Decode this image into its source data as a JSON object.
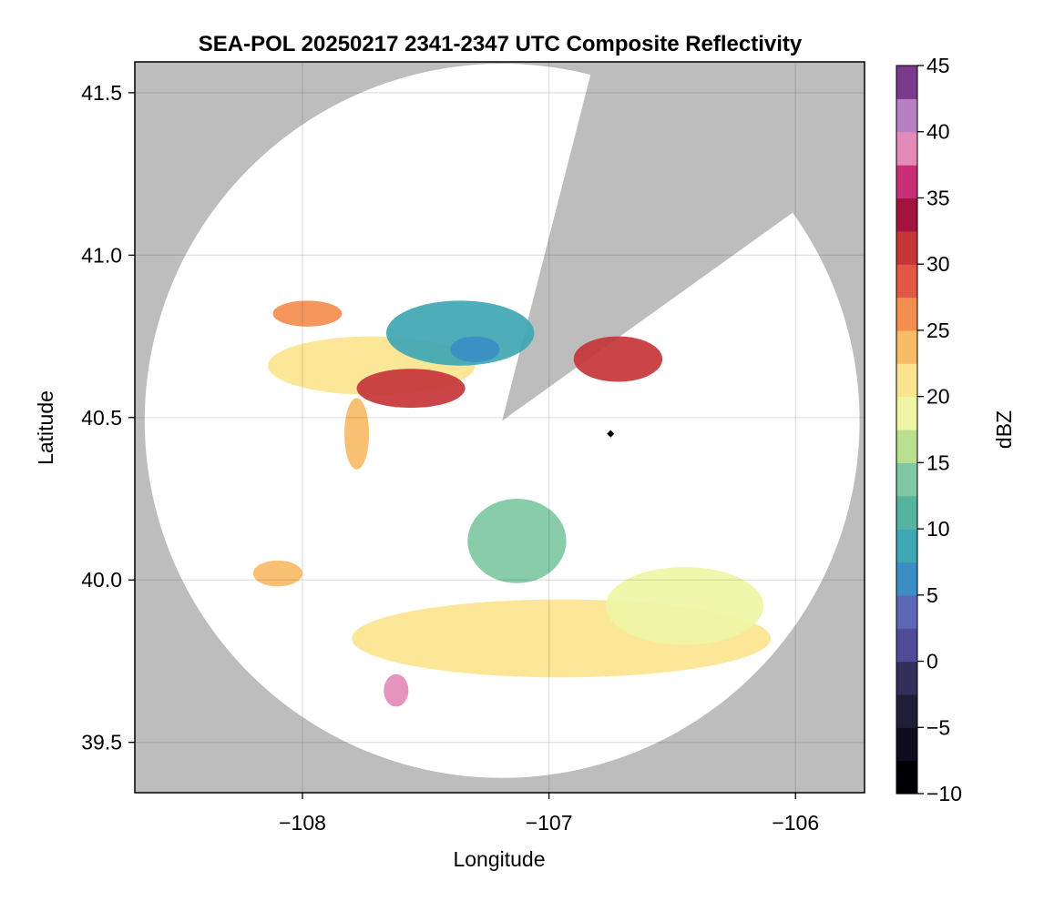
{
  "chart_data": {
    "type": "heatmap",
    "title": "SEA-POL 20250217 2341-2347 UTC Composite Reflectivity",
    "xlabel": "Longitude",
    "ylabel": "Latitude",
    "xlim": [
      -108.68,
      -105.72
    ],
    "ylim": [
      39.345,
      41.595
    ],
    "xticks": [
      -108,
      -107,
      -106
    ],
    "xtick_labels": [
      "−108",
      "−107",
      "−106"
    ],
    "yticks": [
      39.5,
      40.0,
      40.5,
      41.0,
      41.5
    ],
    "ytick_labels": [
      "39.5",
      "40.0",
      "40.5",
      "41.0",
      "41.5"
    ],
    "grid": true,
    "background_color": "#bdbdbd",
    "radar": {
      "center_lon": -107.19,
      "center_lat": 40.49,
      "coverage_radius_deg": 1.45,
      "blocked_sector": {
        "left_edge_tip": [
          -106.84,
          41.53
        ],
        "right_edge_tip": [
          -106.05,
          41.11
        ]
      },
      "site_marker": [
        -106.75,
        40.45
      ]
    },
    "echo_regions": [
      {
        "name": "northern-band-west",
        "lon": -107.72,
        "lat": 40.66,
        "rx": 0.42,
        "ry": 0.09,
        "dbz": 20
      },
      {
        "name": "northern-band-core",
        "lon": -107.56,
        "lat": 40.59,
        "rx": 0.22,
        "ry": 0.06,
        "dbz": 30
      },
      {
        "name": "northern-stratiform",
        "lon": -107.36,
        "lat": 40.76,
        "rx": 0.3,
        "ry": 0.1,
        "dbz": 9
      },
      {
        "name": "northern-blue-patch",
        "lon": -107.3,
        "lat": 40.71,
        "rx": 0.1,
        "ry": 0.04,
        "dbz": 5
      },
      {
        "name": "northwest-streak",
        "lon": -107.98,
        "lat": 40.82,
        "rx": 0.14,
        "ry": 0.04,
        "dbz": 25
      },
      {
        "name": "southward-tail",
        "lon": -107.78,
        "lat": 40.45,
        "rx": 0.05,
        "ry": 0.11,
        "dbz": 24
      },
      {
        "name": "northeast-cell",
        "lon": -106.72,
        "lat": 40.68,
        "rx": 0.18,
        "ry": 0.07,
        "dbz": 30
      },
      {
        "name": "central-cell",
        "lon": -107.13,
        "lat": 40.12,
        "rx": 0.2,
        "ry": 0.13,
        "dbz": 14
      },
      {
        "name": "southern-band",
        "lon": -106.95,
        "lat": 39.82,
        "rx": 0.85,
        "ry": 0.12,
        "dbz": 20
      },
      {
        "name": "southern-band-east",
        "lon": -106.45,
        "lat": 39.92,
        "rx": 0.32,
        "ry": 0.12,
        "dbz": 19
      },
      {
        "name": "southwest-core",
        "lon": -107.62,
        "lat": 39.66,
        "rx": 0.05,
        "ry": 0.05,
        "dbz": 38
      },
      {
        "name": "western-fragment",
        "lon": -108.1,
        "lat": 40.02,
        "rx": 0.1,
        "ry": 0.04,
        "dbz": 24
      }
    ],
    "colorbar": {
      "label": "dBZ",
      "min": -10,
      "max": 45,
      "ticks": [
        -10,
        -5,
        0,
        5,
        10,
        15,
        20,
        25,
        30,
        35,
        40,
        45
      ],
      "tick_labels": [
        "−10",
        "−5",
        "0",
        "5",
        "10",
        "15",
        "20",
        "25",
        "30",
        "35",
        "40",
        "45"
      ],
      "step": 2.5,
      "colormap": [
        [
          -10,
          "#000004"
        ],
        [
          -7.5,
          "#100c20"
        ],
        [
          -5,
          "#1f1e36"
        ],
        [
          -2.5,
          "#332e5a"
        ],
        [
          0,
          "#4e4b99"
        ],
        [
          2.5,
          "#5c67b5"
        ],
        [
          5,
          "#3b8ec4"
        ],
        [
          7.5,
          "#3ea7b4"
        ],
        [
          10,
          "#56b3a0"
        ],
        [
          12.5,
          "#7fc8a3"
        ],
        [
          15,
          "#b8e08f"
        ],
        [
          17.5,
          "#eef6a6"
        ],
        [
          20,
          "#fce48f"
        ],
        [
          22.5,
          "#f8bb68"
        ],
        [
          25,
          "#f48e4f"
        ],
        [
          27.5,
          "#e25844"
        ],
        [
          30,
          "#c63538"
        ],
        [
          32.5,
          "#a2143e"
        ],
        [
          35,
          "#c82f76"
        ],
        [
          37.5,
          "#e48ab8"
        ],
        [
          40,
          "#b680c2"
        ],
        [
          42.5,
          "#7a3a8e"
        ],
        [
          45,
          "#3b0e4d"
        ]
      ]
    }
  }
}
